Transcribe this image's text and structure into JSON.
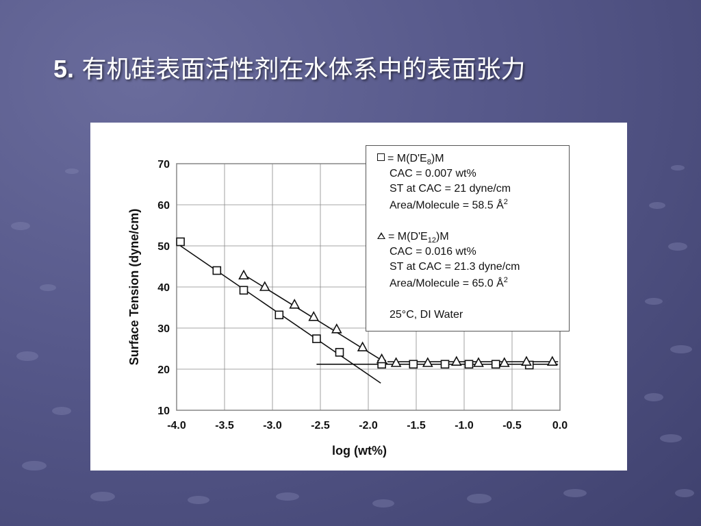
{
  "slide": {
    "title_number": "5.",
    "title_text": "有机硅表面活性剂在水体系中的表面张力"
  },
  "legend": {
    "series1_symbol": "square-icon",
    "series1_name_prefix": "= M(D'E",
    "series1_name_sub": "8",
    "series1_name_suffix": ")M",
    "series1_cac": "CAC = 0.007 wt%",
    "series1_st": "ST at CAC = 21 dyne/cm",
    "series1_area": "Area/Molecule = 58.5 Å",
    "series1_area_sup": "2",
    "series2_symbol": "triangle-icon",
    "series2_name_prefix": "= M(D'E",
    "series2_name_sub": "12",
    "series2_name_suffix": ")M",
    "series2_cac": "CAC = 0.016 wt%",
    "series2_st": "ST at CAC = 21.3 dyne/cm",
    "series2_area": "Area/Molecule = 65.0 Å",
    "series2_area_sup": "2",
    "conditions": "25°C,  DI Water"
  },
  "chart_data": {
    "type": "scatter",
    "xlabel": "log (wt%)",
    "ylabel": "Surface Tension (dyne/cm)",
    "xlim": [
      -4.0,
      0.0
    ],
    "ylim": [
      10,
      70
    ],
    "x_ticks": [
      "-4.0",
      "-3.5",
      "-3.0",
      "-2.5",
      "-2.0",
      "-1.5",
      "-1.0",
      "-0.5",
      "0.0"
    ],
    "y_ticks": [
      "10",
      "20",
      "30",
      "40",
      "50",
      "60",
      "70"
    ],
    "grid": true,
    "legend_position": "top-right",
    "series": [
      {
        "name": "M(D'E8)M",
        "marker": "square",
        "points": [
          [
            -3.96,
            51.0
          ],
          [
            -3.58,
            44.0
          ],
          [
            -3.3,
            39.2
          ],
          [
            -2.93,
            33.2
          ],
          [
            -2.54,
            27.4
          ],
          [
            -2.3,
            24.1
          ],
          [
            -1.86,
            21.2
          ],
          [
            -1.53,
            21.2
          ],
          [
            -1.2,
            21.2
          ],
          [
            -0.95,
            21.2
          ],
          [
            -0.67,
            21.2
          ],
          [
            -0.32,
            21.0
          ]
        ],
        "fit_lines": [
          [
            [
              -3.96,
              50.0
            ],
            [
              -1.87,
              16.6
            ]
          ],
          [
            [
              -2.54,
              21.2
            ],
            [
              -0.02,
              21.2
            ]
          ]
        ]
      },
      {
        "name": "M(D'E12)M",
        "marker": "triangle",
        "points": [
          [
            -3.3,
            42.8
          ],
          [
            -3.08,
            40.0
          ],
          [
            -2.77,
            35.7
          ],
          [
            -2.57,
            32.7
          ],
          [
            -2.33,
            29.7
          ],
          [
            -2.06,
            25.3
          ],
          [
            -1.86,
            22.4
          ],
          [
            -1.71,
            21.5
          ],
          [
            -1.38,
            21.5
          ],
          [
            -1.08,
            21.8
          ],
          [
            -0.85,
            21.5
          ],
          [
            -0.58,
            21.5
          ],
          [
            -0.35,
            21.8
          ],
          [
            -0.08,
            21.8
          ]
        ],
        "fit_lines": [
          [
            [
              -3.3,
              43.0
            ],
            [
              -1.8,
              21.3
            ]
          ],
          [
            [
              -1.8,
              21.8
            ],
            [
              -0.02,
              21.8
            ]
          ]
        ]
      }
    ]
  }
}
